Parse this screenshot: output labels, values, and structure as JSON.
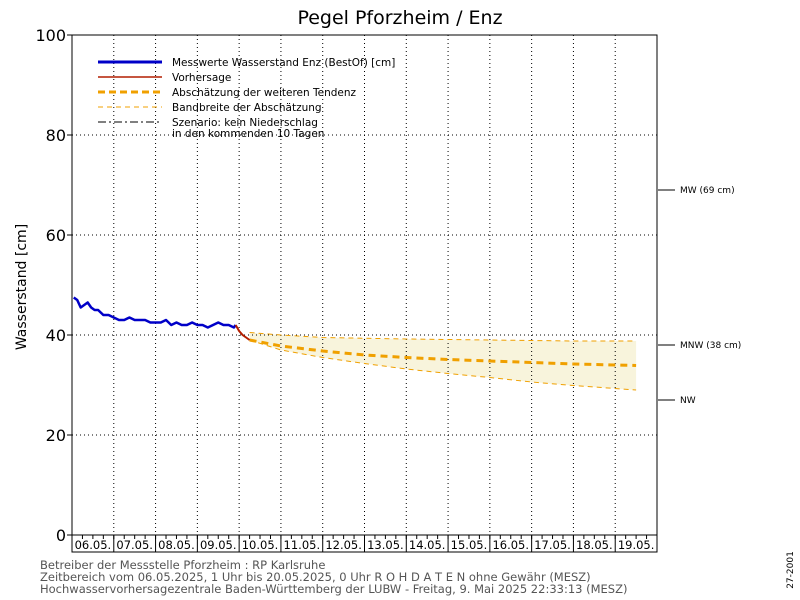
{
  "chart_data": {
    "type": "line",
    "title": "Pegel Pforzheim / Enz",
    "ylabel": "Wasserstand [cm]",
    "ylim": [
      0,
      100
    ],
    "yticks": [
      0,
      20,
      40,
      60,
      80,
      100
    ],
    "x_start": "06.05.2025 00:00",
    "x_end": "20.05.2025 00:00",
    "x_tick_labels": [
      "06.05.",
      "07.05.",
      "08.05.",
      "09.05.",
      "10.05.",
      "11.05.",
      "12.05.",
      "13.05.",
      "14.05.",
      "15.05.",
      "16.05.",
      "17.05.",
      "18.05.",
      "19.05."
    ],
    "grid": true,
    "legend_position": "top-left",
    "legend": [
      {
        "label": "Messwerte Wasserstand Enz   (BestOf)   [cm]",
        "color": "#0000c8",
        "style": "solid-thick"
      },
      {
        "label": "Vorhersage",
        "color": "#b41e00",
        "style": "solid"
      },
      {
        "label": "Abschätzung der weiteren Tendenz",
        "color": "#f0a000",
        "style": "dashed-thick"
      },
      {
        "label": "Bandbreite der Abschätzung",
        "color": "#f0a000",
        "style": "dashed-thin"
      },
      {
        "label": "Szenario: kein Niederschlag",
        "label2": "in den kommenden 10 Tagen",
        "color": "#000000",
        "style": "dashdot"
      }
    ],
    "reference_levels": [
      {
        "label": "MW (69 cm)",
        "value": 69
      },
      {
        "label": "MNW (38 cm)",
        "value": 38
      },
      {
        "label": "NW",
        "value": 27
      }
    ],
    "series": [
      {
        "name": "Messwerte Wasserstand Enz (BestOf)",
        "color": "#0000c8",
        "x": [
          "06.05. 01:00",
          "06.05. 03:00",
          "06.05. 05:00",
          "06.05. 07:00",
          "06.05. 09:00",
          "06.05. 11:00",
          "06.05. 13:00",
          "06.05. 15:00",
          "06.05. 18:00",
          "06.05. 21:00",
          "07.05. 00:00",
          "07.05. 03:00",
          "07.05. 06:00",
          "07.05. 09:00",
          "07.05. 12:00",
          "07.05. 15:00",
          "07.05. 18:00",
          "07.05. 21:00",
          "08.05. 00:00",
          "08.05. 03:00",
          "08.05. 06:00",
          "08.05. 09:00",
          "08.05. 12:00",
          "08.05. 15:00",
          "08.05. 18:00",
          "08.05. 21:00",
          "09.05. 00:00",
          "09.05. 03:00",
          "09.05. 06:00",
          "09.05. 09:00",
          "09.05. 12:00",
          "09.05. 15:00",
          "09.05. 18:00",
          "09.05. 21:00",
          "09.05. 22:00"
        ],
        "y": [
          47.5,
          47,
          45.5,
          46,
          46.5,
          45.5,
          45,
          45,
          44,
          44,
          43.5,
          43,
          43,
          43.5,
          43,
          43,
          43,
          42.5,
          42.5,
          42.5,
          43,
          42,
          42.5,
          42,
          42,
          42.5,
          42,
          42,
          41.5,
          42,
          42.5,
          42,
          42,
          41.5,
          42
        ]
      },
      {
        "name": "Vorhersage",
        "color": "#b41e00",
        "x": [
          "09.05. 22:00",
          "10.05. 00:00",
          "10.05. 02:00",
          "10.05. 04:00",
          "10.05. 06:00"
        ],
        "y": [
          42,
          40.8,
          40,
          39.5,
          39
        ]
      },
      {
        "name": "Abschätzung der weiteren Tendenz",
        "color": "#f0a000",
        "x": [
          "10.05. 06:00",
          "11.05. 00:00",
          "12.05. 00:00",
          "13.05. 00:00",
          "14.05. 00:00",
          "15.05. 00:00",
          "16.05. 00:00",
          "17.05. 00:00",
          "18.05. 00:00",
          "19.05. 00:00",
          "19.05. 12:00"
        ],
        "y": [
          39,
          37.8,
          36.8,
          36,
          35.5,
          35.1,
          34.8,
          34.5,
          34.2,
          34,
          33.9
        ]
      },
      {
        "name": "Bandbreite der Abschätzung (oben)",
        "color": "#f0a000",
        "x": [
          "10.05. 06:00",
          "11.05. 00:00",
          "12.05. 00:00",
          "14.05. 00:00",
          "16.05. 00:00",
          "18.05. 00:00",
          "19.05. 12:00"
        ],
        "y": [
          40.5,
          40,
          39.5,
          39.2,
          39,
          38.8,
          38.8
        ]
      },
      {
        "name": "Bandbreite der Abschätzung (unten)",
        "color": "#f0a000",
        "x": [
          "10.05. 06:00",
          "11.05. 00:00",
          "12.05. 00:00",
          "13.05. 00:00",
          "14.05. 00:00",
          "15.05. 00:00",
          "16.05. 00:00",
          "17.05. 00:00",
          "18.05. 00:00",
          "19.05. 12:00"
        ],
        "y": [
          39,
          37,
          35.5,
          34.3,
          33.2,
          32.3,
          31.5,
          30.6,
          29.9,
          29
        ]
      }
    ]
  },
  "footer": {
    "line1": "Betreiber der Messstelle Pforzheim : RP Karlsruhe",
    "line2": "Zeitbereich vom 06.05.2025, 1 Uhr bis 20.05.2025, 0 Uhr    R O H D A T E N  ohne Gewähr (MESZ)",
    "line3": "Hochwasservorhersagezentrale Baden-Württemberg der LUBW - Freitag, 9. Mai 2025 22:33:13 (MESZ)",
    "side_code": "27-2001"
  },
  "colors": {
    "measured": "#0000c8",
    "forecast": "#b41e00",
    "tendency": "#f0a000",
    "band_fill": "#f8f4dc"
  }
}
